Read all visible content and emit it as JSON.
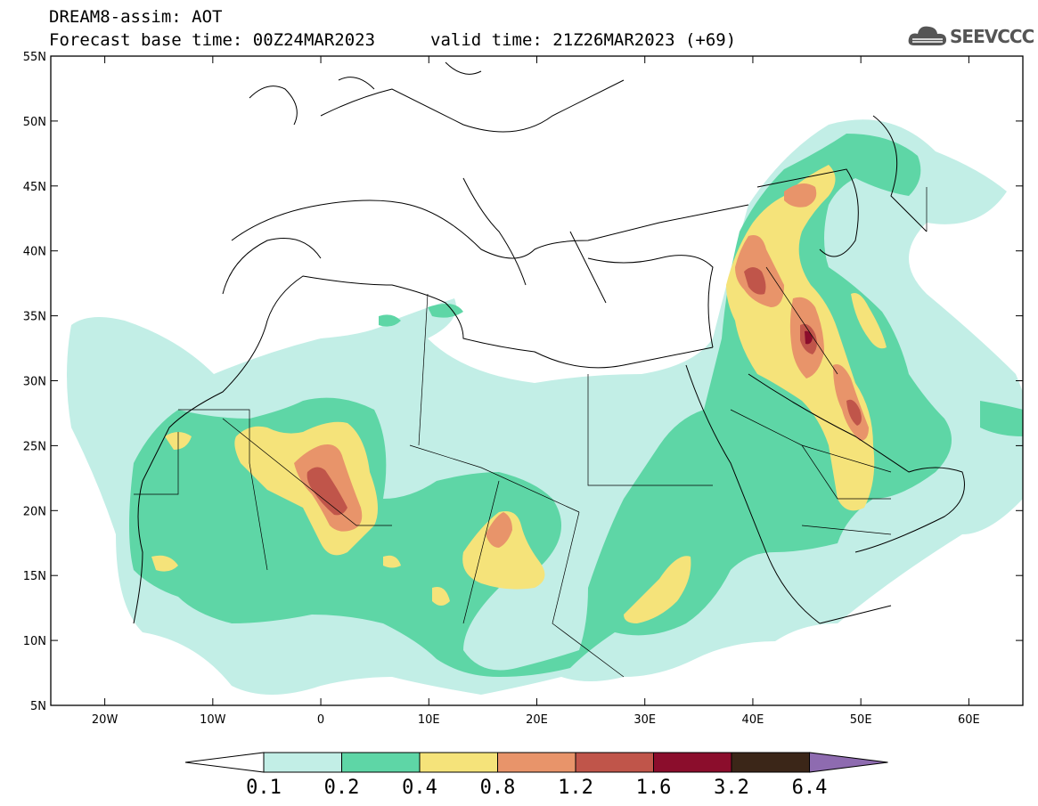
{
  "header": {
    "model_line": "DREAM8-assim: AOT",
    "base_time": "Forecast base time: 00Z24MAR2023",
    "valid_time": "valid time: 21Z26MAR2023 (+69)"
  },
  "logo": {
    "text": "SEEVCCC",
    "icon": "cloud-icon"
  },
  "map": {
    "lon_range": [
      -25,
      65
    ],
    "lat_range": [
      5,
      55
    ],
    "lat_ticks": [
      "5N",
      "10N",
      "15N",
      "20N",
      "25N",
      "30N",
      "35N",
      "40N",
      "45N",
      "50N",
      "55N"
    ],
    "lon_ticks": [
      "20W",
      "10W",
      "0",
      "10E",
      "20E",
      "30E",
      "40E",
      "50E",
      "60E"
    ]
  },
  "colorbar": {
    "labels": [
      "0.1",
      "0.2",
      "0.4",
      "0.8",
      "1.2",
      "1.6",
      "3.2",
      "6.4"
    ],
    "colors": [
      "#c2eee6",
      "#5ed6a6",
      "#f5e37a",
      "#e8946a",
      "#c0554a",
      "#8b0d2c",
      "#3b2618",
      "#8e6bb0"
    ],
    "under_color": "#ffffff",
    "over_color": "#8e6bb0"
  }
}
